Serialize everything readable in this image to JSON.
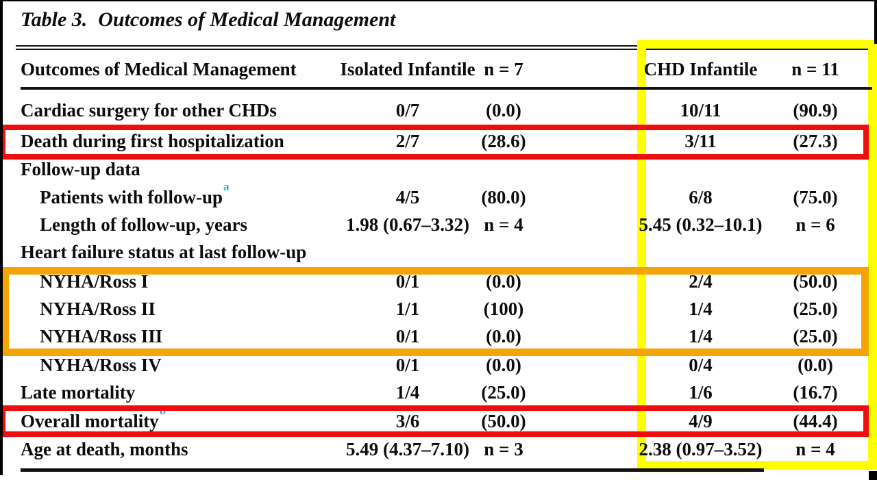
{
  "paper_table": {
    "caption_label": "Table 3.",
    "caption_title": "Outcomes of Medical Management",
    "header": {
      "col_outcomes": "Outcomes of Medical Management",
      "col_isolated": "Isolated Infantile",
      "col_isolated_n": "n = 7",
      "col_chd": "CHD Infantile",
      "col_chd_n": "n = 11"
    },
    "rows": [
      {
        "label": "Cardiac surgery for other CHDs",
        "indent": false,
        "sup": "",
        "iso": "0/7",
        "iso_n": "(0.0)",
        "chd": "10/11",
        "chd_n": "(90.9)"
      },
      {
        "label": "Death during first hospitalization",
        "indent": false,
        "sup": "",
        "iso": "2/7",
        "iso_n": "(28.6)",
        "chd": "3/11",
        "chd_n": "(27.3)"
      },
      {
        "label": "Follow-up data",
        "indent": false,
        "sup": "",
        "iso": "",
        "iso_n": "",
        "chd": "",
        "chd_n": ""
      },
      {
        "label": "Patients with follow-up",
        "indent": true,
        "sup": "a",
        "iso": "4/5",
        "iso_n": "(80.0)",
        "chd": "6/8",
        "chd_n": "(75.0)"
      },
      {
        "label": "Length of follow-up, years",
        "indent": true,
        "sup": "",
        "iso": "1.98 (0.67–3.32)",
        "iso_n": "n = 4",
        "chd": "5.45 (0.32–10.1)",
        "chd_n": "n = 6"
      },
      {
        "label": "Heart failure status at last follow-up",
        "indent": false,
        "sup": "",
        "iso": "",
        "iso_n": "",
        "chd": "",
        "chd_n": ""
      },
      {
        "label": "NYHA/Ross I",
        "indent": true,
        "sup": "",
        "iso": "0/1",
        "iso_n": "(0.0)",
        "chd": "2/4",
        "chd_n": "(50.0)"
      },
      {
        "label": "NYHA/Ross II",
        "indent": true,
        "sup": "",
        "iso": "1/1",
        "iso_n": "(100)",
        "chd": "1/4",
        "chd_n": "(25.0)"
      },
      {
        "label": "NYHA/Ross III",
        "indent": true,
        "sup": "",
        "iso": "0/1",
        "iso_n": "(0.0)",
        "chd": "1/4",
        "chd_n": "(25.0)"
      },
      {
        "label": "NYHA/Ross IV",
        "indent": true,
        "sup": "",
        "iso": "0/1",
        "iso_n": "(0.0)",
        "chd": "0/4",
        "chd_n": "(0.0)"
      },
      {
        "label": "Late mortality",
        "indent": false,
        "sup": "",
        "iso": "1/4",
        "iso_n": "(25.0)",
        "chd": "1/6",
        "chd_n": "(16.7)"
      },
      {
        "label": "Overall mortality",
        "indent": false,
        "sup": "b",
        "iso": "3/6",
        "iso_n": "(50.0)",
        "chd": "4/9",
        "chd_n": "(44.4)"
      },
      {
        "label": "Age at death, months",
        "indent": false,
        "sup": "",
        "iso": "5.49 (4.37–7.10)",
        "iso_n": "n = 3",
        "chd": "2.38 (0.97–3.52)",
        "chd_n": "n = 4"
      }
    ],
    "annotations": {
      "yellow_box_meaning": "CHD Infantile columns highlight",
      "red_box_1_meaning": "Death during first hospitalization row highlight",
      "red_box_2_meaning": "Overall mortality row highlight",
      "orange_box_meaning": "NYHA/Ross I-III rows highlight"
    },
    "colors": {
      "highlight_yellow": "#ffff00",
      "highlight_red": "#f20d0d",
      "highlight_orange": "#f4a405",
      "superscript_blue": "#2e9fd4",
      "text_black": "#0d0d0d"
    }
  }
}
